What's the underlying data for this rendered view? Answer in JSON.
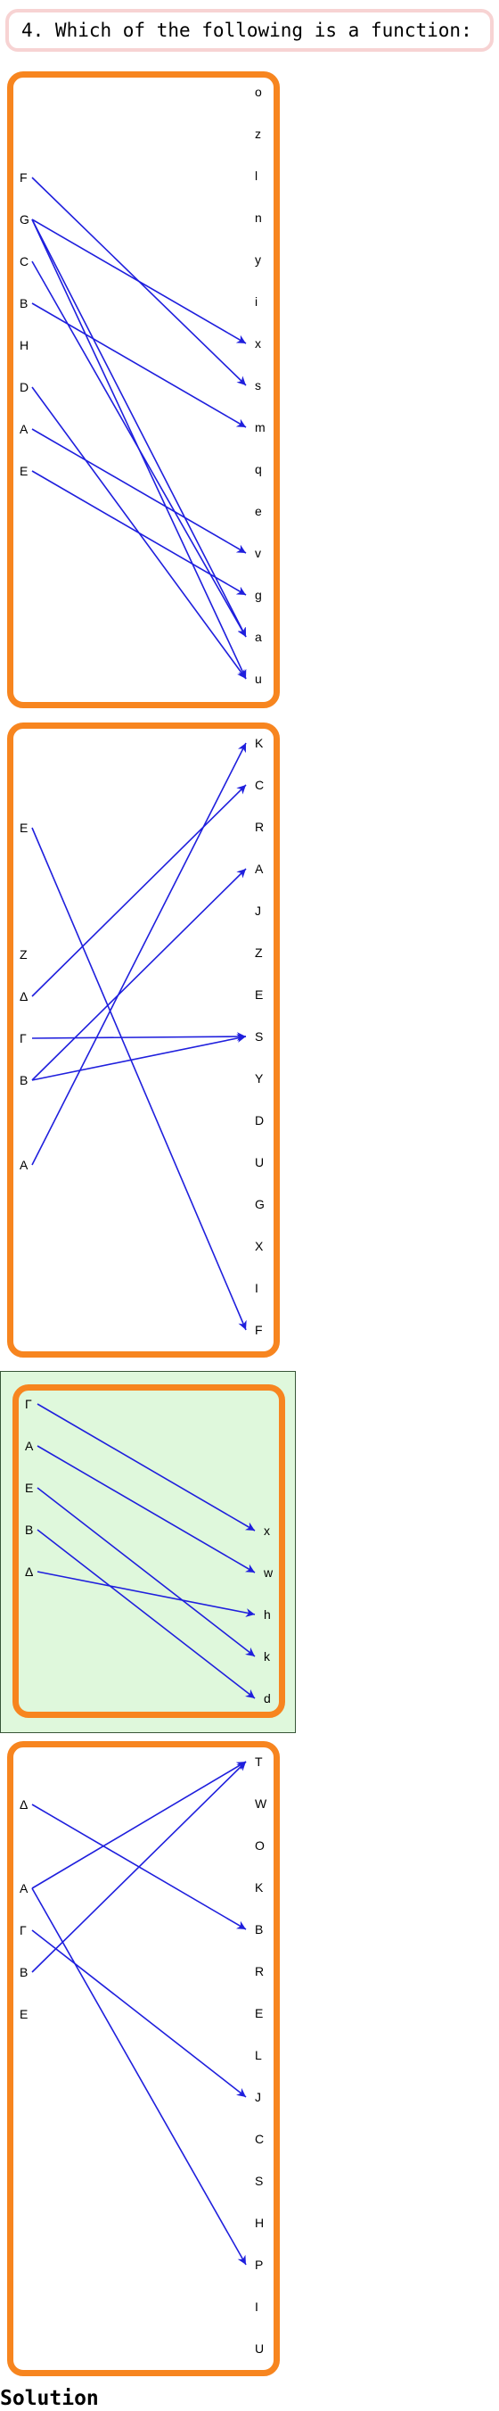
{
  "question": "4. Which of the following is a function:",
  "solution_label": "Solution",
  "colors": {
    "box_border": "#f7851f",
    "selected_fill": "#dff8dc",
    "arrow": "#1f1fdd",
    "question_border": "#f7d3d3"
  },
  "options": [
    {
      "id": "option-1",
      "selected": false,
      "left": [
        "F",
        "G",
        "C",
        "B",
        "H",
        "D",
        "A",
        "E"
      ],
      "right": [
        "o",
        "z",
        "l",
        "n",
        "y",
        "i",
        "x",
        "s",
        "m",
        "q",
        "e",
        "v",
        "g",
        "a",
        "u"
      ],
      "maps": [
        [
          "F",
          "s"
        ],
        [
          "G",
          "x"
        ],
        [
          "G",
          "a"
        ],
        [
          "G",
          "u"
        ],
        [
          "C",
          "a"
        ],
        [
          "B",
          "m"
        ],
        [
          "D",
          "u"
        ],
        [
          "A",
          "v"
        ],
        [
          "E",
          "g"
        ]
      ]
    },
    {
      "id": "option-2",
      "selected": false,
      "left": [
        "E",
        "Z",
        "Δ",
        "Γ",
        "B",
        "A"
      ],
      "right": [
        "K",
        "C",
        "R",
        "A",
        "J",
        "Z",
        "E",
        "S",
        "Y",
        "D",
        "U",
        "G",
        "X",
        "I",
        "F"
      ],
      "maps": [
        [
          "E",
          "F"
        ],
        [
          "Δ",
          "C"
        ],
        [
          "Γ",
          "S"
        ],
        [
          "B",
          "A"
        ],
        [
          "B",
          "S"
        ],
        [
          "A",
          "K"
        ]
      ]
    },
    {
      "id": "option-3",
      "selected": true,
      "left": [
        "Γ",
        "A",
        "E",
        "B",
        "Δ"
      ],
      "right": [
        "x",
        "w",
        "h",
        "k",
        "d"
      ],
      "maps": [
        [
          "Γ",
          "x"
        ],
        [
          "A",
          "w"
        ],
        [
          "E",
          "k"
        ],
        [
          "B",
          "d"
        ],
        [
          "Δ",
          "h"
        ]
      ]
    },
    {
      "id": "option-4",
      "selected": false,
      "left": [
        "Δ",
        "A",
        "Γ",
        "B",
        "E"
      ],
      "right": [
        "T",
        "W",
        "O",
        "K",
        "B",
        "R",
        "E",
        "L",
        "J",
        "C",
        "S",
        "H",
        "P",
        "I",
        "U"
      ],
      "maps": [
        [
          "Δ",
          "B"
        ],
        [
          "A",
          "T"
        ],
        [
          "A",
          "P"
        ],
        [
          "Γ",
          "J"
        ],
        [
          "B",
          "T"
        ]
      ]
    }
  ]
}
